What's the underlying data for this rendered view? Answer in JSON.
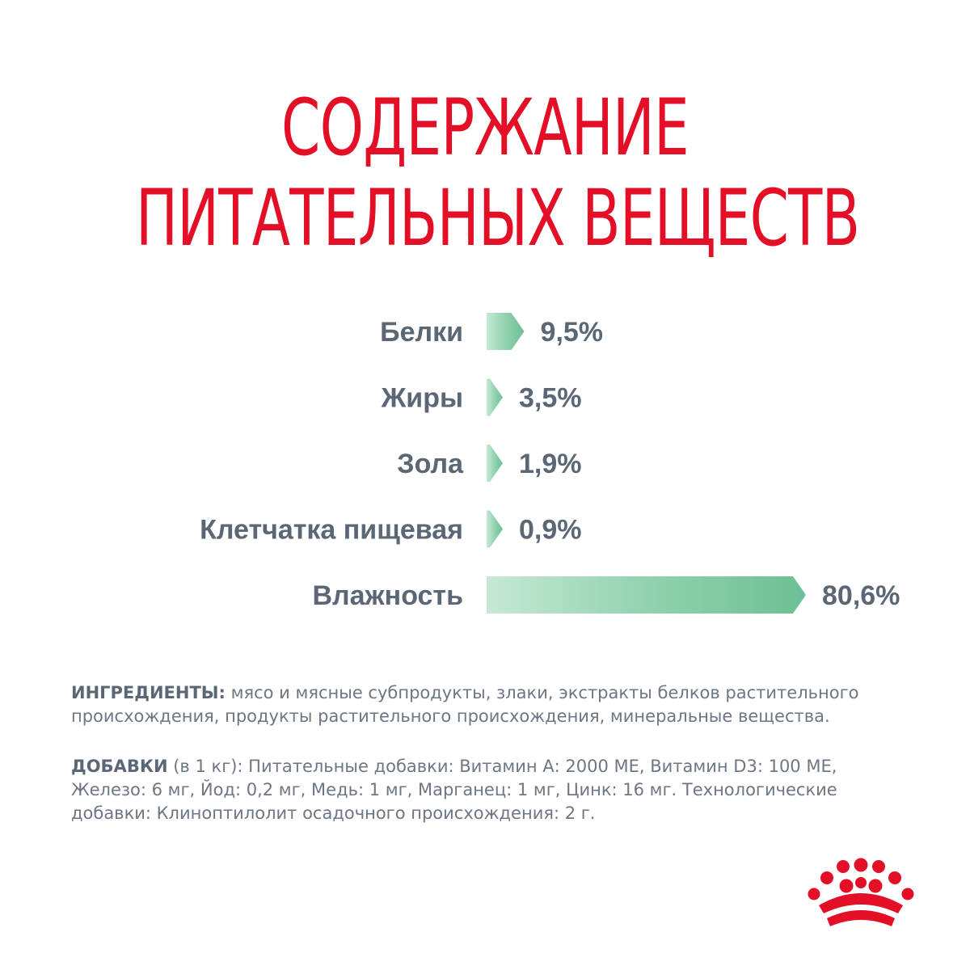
{
  "title": {
    "line1": "СОДЕРЖАНИЕ",
    "line2": "ПИТАТЕЛЬНЫХ ВЕЩЕСТВ"
  },
  "colors": {
    "accent_red": "#e30f26",
    "text_gray": "#5b6775",
    "bar_green_light": "#b9e2cd",
    "bar_green_dark": "#6dbf94"
  },
  "chart_data": {
    "type": "bar",
    "orientation": "horizontal",
    "categories": [
      "Белки",
      "Жиры",
      "Зола",
      "Клетчатка пищевая",
      "Влажность"
    ],
    "values": [
      9.5,
      3.5,
      1.9,
      0.9,
      80.6
    ],
    "value_labels": [
      "9,5%",
      "3,5%",
      "1,9%",
      "0,9%",
      "80,6%"
    ],
    "unit": "%",
    "title": "СОДЕРЖАНИЕ ПИТАТЕЛЬНЫХ ВЕЩЕСТВ",
    "xlabel": "",
    "ylabel": "",
    "grid": false
  },
  "ingredients": {
    "label": "ИНГРЕДИЕНТЫ:",
    "text": " мясо и мясные субпродукты, злаки, экстракты белков растительного происхождения, продукты растительного происхождения, минеральные вещества."
  },
  "additives": {
    "label": "ДОБАВКИ",
    "text": " (в 1 кг): Питательные добавки: Витамин А: 2000 МЕ, Витамин D3: 100 МЕ, Железо: 6 мг, Йод: 0,2 мг, Медь: 1 мг, Марганец: 1 мг, Цинк: 16 мг. Технологические добавки: Клиноптилолит осадочного происхождения: 2 г."
  },
  "logo": {
    "icon": "crown-icon"
  }
}
